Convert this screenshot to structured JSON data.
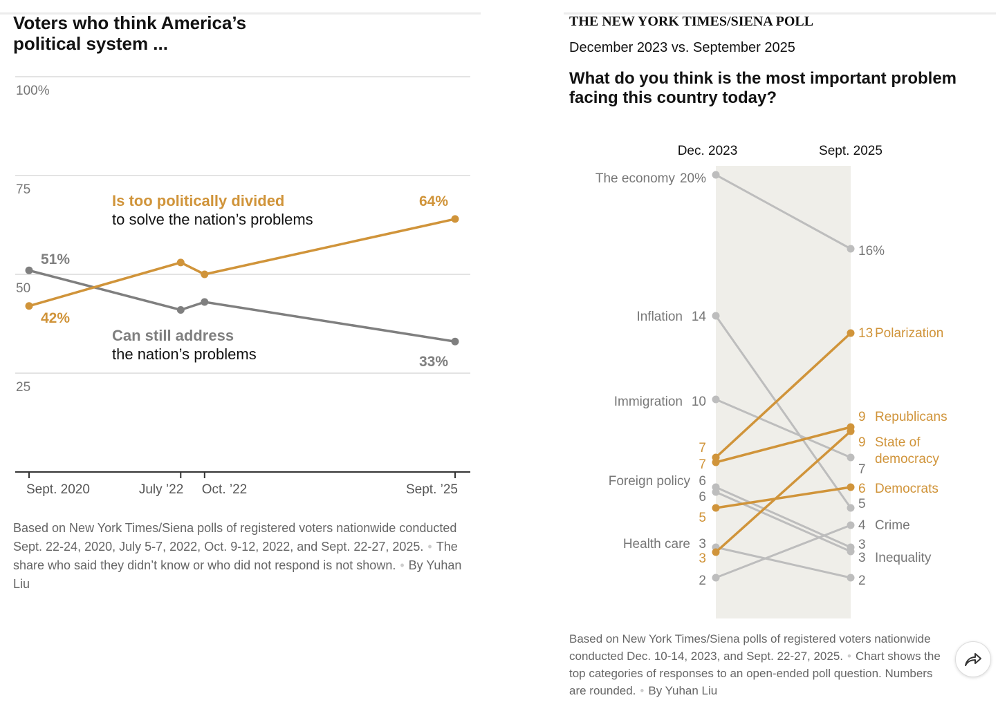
{
  "chart_data": [
    {
      "type": "line",
      "title": "Voters who think America’s political system ...",
      "yticks": [
        "100%",
        "75",
        "50",
        "25"
      ],
      "ytick_values": [
        100,
        75,
        50,
        25
      ],
      "ylim": [
        0,
        100
      ],
      "x": [
        "Sept. 2020",
        "July ’22",
        "Oct. ’22",
        "Sept. ’25"
      ],
      "x_pos": [
        2020.72,
        2022.5,
        2022.78,
        2025.72
      ],
      "series": [
        {
          "name": "Is too politically divided",
          "name_rest": "to solve the nation’s problems",
          "color": "#d0943a",
          "values": [
            42,
            53,
            50,
            64
          ],
          "start_label": "42%",
          "end_label": "64%"
        },
        {
          "name": "Can still address",
          "name_rest": "the nation’s problems",
          "color": "#7f7f7f",
          "values": [
            51,
            41,
            43,
            33
          ],
          "start_label": "51%",
          "end_label": "33%"
        }
      ],
      "note": "Based on New York Times/Siena polls of registered voters nationwide conducted Sept. 22-24, 2020, July 5-7, 2022, Oct. 9-12, 2022, and Sept. 22-27, 2025.",
      "note2": "The share who said they didn’t know or who did not respond is not shown.",
      "byline": "By Yuhan Liu"
    },
    {
      "type": "slope",
      "kicker": "THE NEW YORK TIMES/SIENA POLL",
      "subtitle": "December 2023 vs. September 2025",
      "title": "What do you think is the most important problem facing this country today?",
      "columns": [
        "Dec. 2023",
        "Sept. 2025"
      ],
      "series": [
        {
          "name": "The economy",
          "dec": 20,
          "sep": 16,
          "dec_label": "20%",
          "sep_label": "16%",
          "highlight": false,
          "left_name": true,
          "right_name": false
        },
        {
          "name": "Inflation",
          "dec": 14,
          "sep": 5,
          "dec_label": "14",
          "sep_label": "5",
          "highlight": false,
          "left_name": true,
          "right_name": false
        },
        {
          "name": "Immigration",
          "dec": 10,
          "sep": 7,
          "dec_label": "10",
          "sep_label": "7",
          "highlight": false,
          "left_name": true,
          "right_name": false
        },
        {
          "name": "Polarization",
          "dec": 7,
          "sep": 13,
          "dec_label": "7",
          "sep_label": "13",
          "highlight": true,
          "left_name": false,
          "right_name": true
        },
        {
          "name": "Republicans",
          "dec": 7,
          "sep": 9,
          "dec_label": "7",
          "sep_label": "9",
          "highlight": true,
          "left_name": false,
          "right_name": true
        },
        {
          "name": "Foreign policy",
          "dec": 6,
          "sep": 3,
          "dec_label": "6",
          "sep_label": "3",
          "highlight": false,
          "left_name": true,
          "right_name": false
        },
        {
          "name": "Inequality",
          "dec": 6,
          "sep": 3,
          "dec_label": "6",
          "sep_label": "3",
          "highlight": false,
          "left_name": false,
          "right_name": true
        },
        {
          "name": "Democrats",
          "dec": 5,
          "sep": 6,
          "dec_label": "5",
          "sep_label": "6",
          "highlight": true,
          "left_name": false,
          "right_name": true
        },
        {
          "name": "Health care",
          "dec": 3,
          "sep": 2,
          "dec_label": "3",
          "sep_label": "2",
          "highlight": false,
          "left_name": true,
          "right_name": false
        },
        {
          "name": "State of democracy",
          "dec": 3,
          "sep": 9,
          "dec_label": "3",
          "sep_label": "9",
          "highlight": true,
          "left_name": false,
          "right_name": true
        },
        {
          "name": "Crime",
          "dec": 2,
          "sep": 4,
          "dec_label": "2",
          "sep_label": "4",
          "highlight": false,
          "left_name": false,
          "right_name": true
        }
      ],
      "colors": {
        "highlight": "#d0943a",
        "muted": "#bdbdbd",
        "band": "#efeee9"
      },
      "note": "Based on New York Times/Siena polls of registered voters nationwide conducted Dec. 10-14, 2023, and Sept. 22-27, 2025.",
      "note2": "Chart shows the top categories of responses to an open-ended poll question. Numbers are rounded.",
      "byline": "By Yuhan Liu"
    }
  ],
  "share_icon": "share-arrow-icon"
}
